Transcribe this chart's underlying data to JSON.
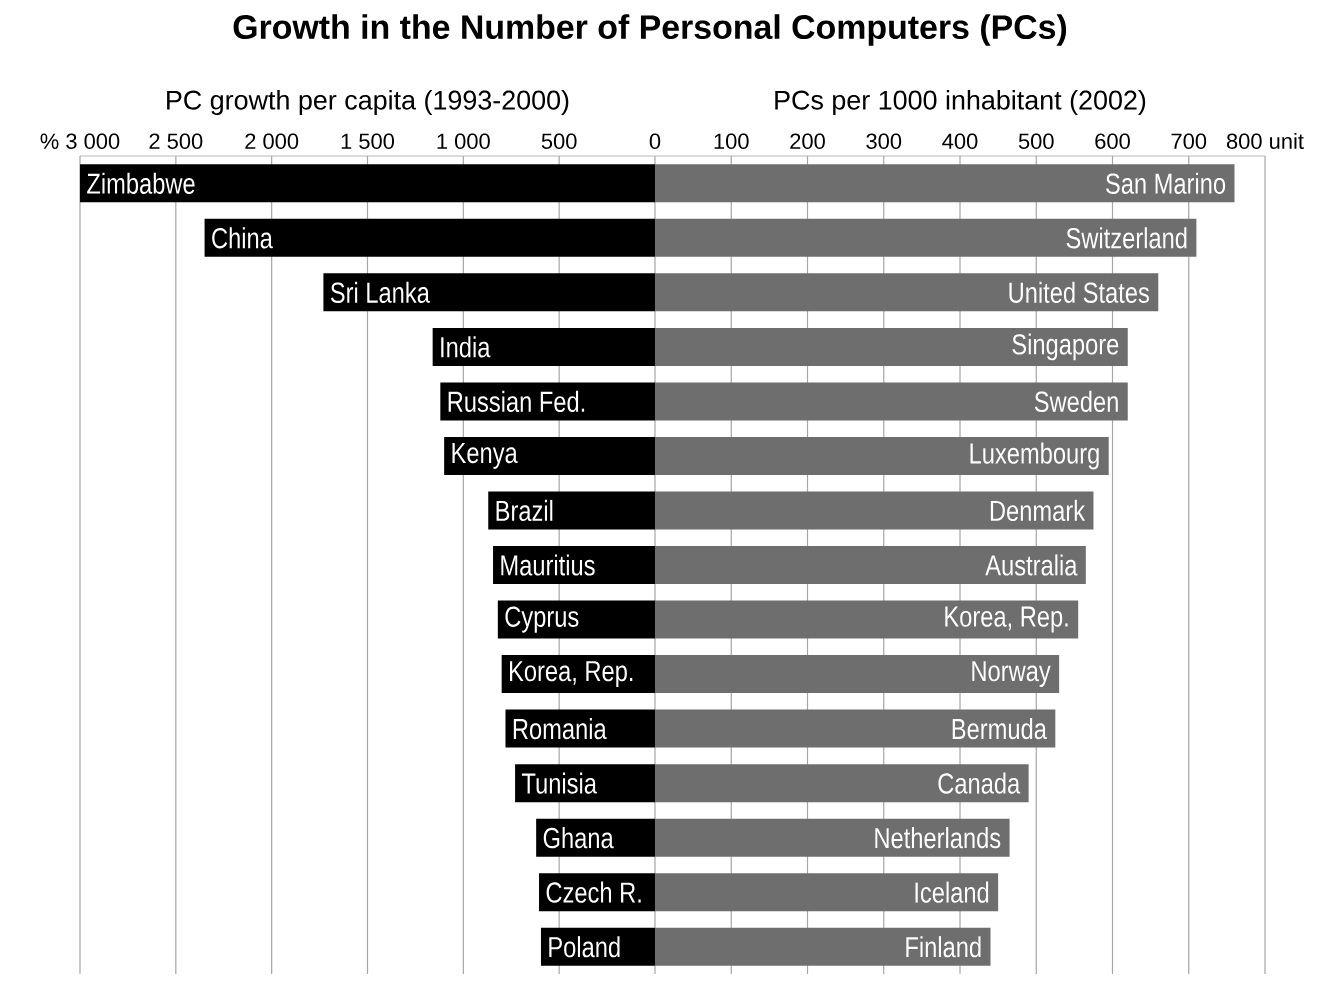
{
  "chart_data": [
    {
      "type": "bar",
      "orientation": "horizontal",
      "title": "Growth in the Number of Personal Computers (PCs)",
      "xlabel": "PC growth per capita (1993-2000)",
      "categories": [
        "Zimbabwe",
        "China",
        "Sri Lanka",
        "India",
        "Russian Fed.",
        "Kenya",
        "Brazil",
        "Mauritius",
        "Cyprus",
        "Korea, Rep.",
        "Romania",
        "Tunisia",
        "Ghana",
        "Czech R.",
        "Poland"
      ],
      "values": [
        3000,
        2350,
        1730,
        1160,
        1120,
        1100,
        870,
        845,
        820,
        800,
        780,
        730,
        620,
        605,
        595
      ],
      "color": "#000000",
      "xlim": [
        3000,
        0
      ],
      "xticks": [
        {
          "value": 3000,
          "label": "% 3 000"
        },
        {
          "value": 2500,
          "label": "2 500"
        },
        {
          "value": 2000,
          "label": "2 000"
        },
        {
          "value": 1500,
          "label": "1 500"
        },
        {
          "value": 1000,
          "label": "1 000"
        },
        500,
        0
      ],
      "grid": "x"
    },
    {
      "type": "bar",
      "orientation": "horizontal",
      "xlabel": "PCs per 1000 inhabitant (2002)",
      "categories": [
        "San Marino",
        "Switzerland",
        "United States",
        "Singapore",
        "Sweden",
        "Luxembourg",
        "Denmark",
        "Australia",
        "Korea, Rep.",
        "Norway",
        "Bermuda",
        "Canada",
        "Netherlands",
        "Iceland",
        "Finland"
      ],
      "values": [
        760,
        710,
        660,
        620,
        620,
        595,
        575,
        565,
        555,
        530,
        525,
        490,
        465,
        450,
        440
      ],
      "color": "#6e6e6e",
      "xlim": [
        0,
        800
      ],
      "xticks": [
        100,
        200,
        300,
        400,
        500,
        600,
        700,
        {
          "value": 800,
          "label": "800 unit"
        }
      ],
      "grid": "x"
    }
  ]
}
